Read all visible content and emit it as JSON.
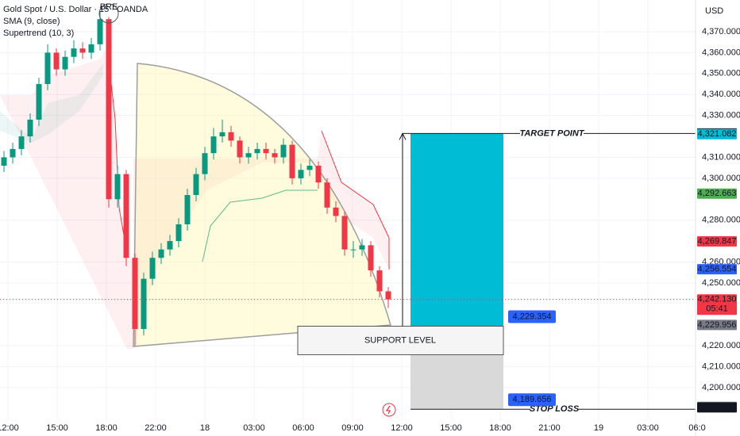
{
  "chart_data": {
    "type": "candlestick",
    "title": "Gold Spot / U.S. Dollar · 15 · OANDA",
    "indicators": [
      "SMA (9, close)",
      "Supertrend (10, 3)"
    ],
    "currency": "USD",
    "news_marker": "BRE",
    "ylim": [
      4176.9,
      4385.15
    ],
    "yticks": [
      {
        "value": 4370,
        "label": "4,370.000"
      },
      {
        "value": 4360,
        "label": "4,360.000"
      },
      {
        "value": 4350,
        "label": "4,350.000"
      },
      {
        "value": 4340,
        "label": "4,340.000"
      },
      {
        "value": 4330,
        "label": "4,330.000"
      },
      {
        "value": 4310,
        "label": "4,310.000"
      },
      {
        "value": 4300,
        "label": "4,300.000"
      },
      {
        "value": 4280,
        "label": "4,280.000"
      },
      {
        "value": 4260,
        "label": "4,260.000"
      },
      {
        "value": 4250,
        "label": "4,250.000"
      },
      {
        "value": 4220,
        "label": "4,220.000"
      },
      {
        "value": 4210,
        "label": "4,210.000"
      },
      {
        "value": 4200,
        "label": "4,200.000"
      }
    ],
    "xticks": [
      "12:00",
      "15:00",
      "18:00",
      "22:00",
      "18",
      "03:00",
      "06:00",
      "09:00",
      "12:00",
      "15:00",
      "18:00",
      "21:00",
      "19",
      "03:00",
      "06:0"
    ],
    "up_color": "#089981",
    "down_color": "#f23645",
    "open": [
      4306,
      4310,
      4314,
      4320,
      4328,
      4345,
      4360,
      4352,
      4358,
      4362,
      4360,
      4364,
      4376,
      4290,
      4302,
      4262,
      4228,
      4252,
      4262,
      4266,
      4270,
      4278,
      4292,
      4302,
      4312,
      4320,
      4322,
      4318,
      4310,
      4312,
      4314,
      4312,
      4310,
      4316,
      4300,
      4304,
      4306,
      4298,
      4286,
      4282,
      4266,
      4266,
      4268,
      4256,
      4246
    ],
    "close": [
      4310,
      4314,
      4320,
      4328,
      4345,
      4360,
      4352,
      4358,
      4362,
      4360,
      4364,
      4376,
      4290,
      4302,
      4262,
      4228,
      4252,
      4262,
      4266,
      4270,
      4278,
      4292,
      4302,
      4312,
      4320,
      4322,
      4318,
      4310,
      4312,
      4314,
      4312,
      4310,
      4316,
      4300,
      4304,
      4306,
      4298,
      4286,
      4282,
      4266,
      4266,
      4268,
      4256,
      4246,
      4242.13
    ],
    "high": [
      4313,
      4317,
      4323,
      4331,
      4348,
      4364,
      4362,
      4361,
      4366,
      4365,
      4367,
      4380,
      4377,
      4306,
      4304,
      4264,
      4255,
      4265,
      4269,
      4273,
      4281,
      4295,
      4305,
      4315,
      4324,
      4328,
      4325,
      4320,
      4315,
      4317,
      4317,
      4314,
      4319,
      4318,
      4307,
      4309,
      4308,
      4300,
      4289,
      4284,
      4270,
      4271,
      4270,
      4258,
      4248
    ],
    "low": [
      4303,
      4307,
      4311,
      4317,
      4325,
      4342,
      4349,
      4349,
      4355,
      4357,
      4357,
      4361,
      4286,
      4286,
      4258,
      4220,
      4225,
      4249,
      4259,
      4263,
      4267,
      4275,
      4289,
      4299,
      4309,
      4317,
      4315,
      4307,
      4307,
      4309,
      4309,
      4307,
      4307,
      4297,
      4297,
      4301,
      4295,
      4283,
      4279,
      4263,
      4262,
      4263,
      4253,
      4243,
      4238
    ],
    "badges": [
      {
        "value": 4321.383,
        "label": "4,321.383",
        "color": "#131722"
      },
      {
        "value": 4321.082,
        "label": "4,321.082",
        "color": "#00bcd4"
      },
      {
        "value": 4292.663,
        "label": "4,292.663",
        "color": "#4caf50"
      },
      {
        "value": 4269.847,
        "label": "4,269.847",
        "color": "#f23645"
      },
      {
        "value": 4256.554,
        "label": "4,256.554",
        "color": "#2962ff"
      },
      {
        "value": 4242.13,
        "label": "4,242.130",
        "color": "#f23645",
        "countdown": "05:41"
      },
      {
        "value": 4229.956,
        "label": "4,229.956",
        "color": "#787b86"
      },
      {
        "value": 4190.859,
        "label": "4,190.859",
        "color": "#b2b5be"
      },
      {
        "value": 4190.558,
        "label": "4,190.558",
        "color": "#131722"
      }
    ],
    "position": {
      "entry": {
        "value": 4229.354,
        "label": "4,229.354"
      },
      "stop": {
        "value": 4189.656,
        "label": "4,189.656"
      },
      "target_label": "TARGET POINT",
      "stop_label": "STOP LOSS"
    },
    "support_label": "SUPPORT LEVEL"
  }
}
